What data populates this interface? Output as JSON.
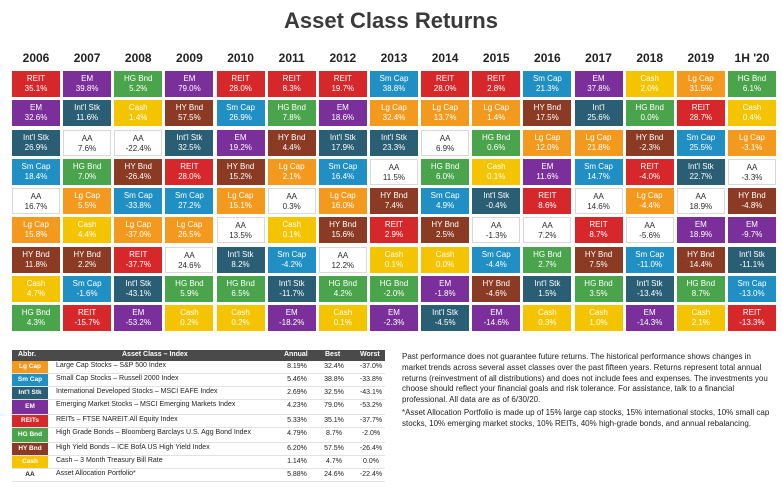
{
  "title": "Asset Class Returns",
  "colors": {
    "REIT": "#d6282a",
    "EM": "#7b2f9a",
    "HG Bnd": "#4aa44c",
    "Sm Cap": "#1f8fc4",
    "Int'l Stk": "#2a5e74",
    "AA": "#ffffff",
    "Lg Cap": "#f39a1e",
    "HY Bnd": "#8b3a24",
    "Cash": "#f5c400"
  },
  "chart_data": {
    "type": "table",
    "title": "Asset Class Returns",
    "years": [
      "2006",
      "2007",
      "2008",
      "2009",
      "2010",
      "2011",
      "2012",
      "2013",
      "2014",
      "2015",
      "2016",
      "2017",
      "2018",
      "2019",
      "1H '20"
    ],
    "columns": [
      [
        [
          "REIT",
          "35.1%"
        ],
        [
          "EM",
          "32.6%"
        ],
        [
          "Int'l Stk",
          "26.9%"
        ],
        [
          "Sm Cap",
          "18.4%"
        ],
        [
          "AA",
          "16.7%"
        ],
        [
          "Lg Cap",
          "15.8%"
        ],
        [
          "HY Bnd",
          "11.8%"
        ],
        [
          "Cash",
          "4.7%"
        ],
        [
          "HG Bnd",
          "4.3%"
        ]
      ],
      [
        [
          "EM",
          "39.8%"
        ],
        [
          "Int'l Stk",
          "11.6%"
        ],
        [
          "AA",
          "7.6%"
        ],
        [
          "HG Bnd",
          "7.0%"
        ],
        [
          "Lg Cap",
          "5.5%"
        ],
        [
          "Cash",
          "4.4%"
        ],
        [
          "HY Bnd",
          "2.2%"
        ],
        [
          "Sm Cap",
          "-1.6%"
        ],
        [
          "REIT",
          "-15.7%"
        ]
      ],
      [
        [
          "HG Bnd",
          "5.2%"
        ],
        [
          "Cash",
          "1.4%"
        ],
        [
          "AA",
          "-22.4%"
        ],
        [
          "HY Bnd",
          "-26.4%"
        ],
        [
          "Sm Cap",
          "-33.8%"
        ],
        [
          "Lg Cap",
          "-37.0%"
        ],
        [
          "REIT",
          "-37.7%"
        ],
        [
          "Int'l Stk",
          "-43.1%"
        ],
        [
          "EM",
          "-53.2%"
        ]
      ],
      [
        [
          "EM",
          "79.0%"
        ],
        [
          "HY Bnd",
          "57.5%"
        ],
        [
          "Int'l Stk",
          "32.5%"
        ],
        [
          "REIT",
          "28.0%"
        ],
        [
          "Sm Cap",
          "27.2%"
        ],
        [
          "Lg Cap",
          "26.5%"
        ],
        [
          "AA",
          "24.6%"
        ],
        [
          "HG Bnd",
          "5.9%"
        ],
        [
          "Cash",
          "0.2%"
        ]
      ],
      [
        [
          "REIT",
          "28.0%"
        ],
        [
          "Sm Cap",
          "26.9%"
        ],
        [
          "EM",
          "19.2%"
        ],
        [
          "HY Bnd",
          "15.2%"
        ],
        [
          "Lg Cap",
          "15.1%"
        ],
        [
          "AA",
          "13.5%"
        ],
        [
          "Int'l Stk",
          "8.2%"
        ],
        [
          "HG Bnd",
          "6.5%"
        ],
        [
          "Cash",
          "0.2%"
        ]
      ],
      [
        [
          "REIT",
          "8.3%"
        ],
        [
          "HG Bnd",
          "7.8%"
        ],
        [
          "HY Bnd",
          "4.4%"
        ],
        [
          "Lg Cap",
          "2.1%"
        ],
        [
          "AA",
          "0.3%"
        ],
        [
          "Cash",
          "0.1%"
        ],
        [
          "Sm Cap",
          "-4.2%"
        ],
        [
          "Int'l Stk",
          "-11.7%"
        ],
        [
          "EM",
          "-18.2%"
        ]
      ],
      [
        [
          "REIT",
          "19.7%"
        ],
        [
          "EM",
          "18.6%"
        ],
        [
          "Int'l Stk",
          "17.9%"
        ],
        [
          "Sm Cap",
          "16.4%"
        ],
        [
          "Lg Cap",
          "16.0%"
        ],
        [
          "HY Bnd",
          "15.6%"
        ],
        [
          "AA",
          "12.2%"
        ],
        [
          "HG Bnd",
          "4.2%"
        ],
        [
          "Cash",
          "0.1%"
        ]
      ],
      [
        [
          "Sm Cap",
          "38.8%"
        ],
        [
          "Lg Cap",
          "32.4%"
        ],
        [
          "Int'l Stk",
          "23.3%"
        ],
        [
          "AA",
          "11.5%"
        ],
        [
          "HY Bnd",
          "7.4%"
        ],
        [
          "REIT",
          "2.9%"
        ],
        [
          "Cash",
          "0.1%"
        ],
        [
          "HG Bnd",
          "-2.0%"
        ],
        [
          "EM",
          "-2.3%"
        ]
      ],
      [
        [
          "REIT",
          "28.0%"
        ],
        [
          "Lg Cap",
          "13.7%"
        ],
        [
          "AA",
          "6.9%"
        ],
        [
          "HG Bnd",
          "6.0%"
        ],
        [
          "Sm Cap",
          "4.9%"
        ],
        [
          "HY Bnd",
          "2.5%"
        ],
        [
          "Cash",
          "0.0%"
        ],
        [
          "EM",
          "-1.8%"
        ],
        [
          "Int'l Stk",
          "-4.5%"
        ]
      ],
      [
        [
          "REIT",
          "2.8%"
        ],
        [
          "Lg Cap",
          "1.4%"
        ],
        [
          "HG Bnd",
          "0.6%"
        ],
        [
          "Cash",
          "0.1%"
        ],
        [
          "Int'l Stk",
          "-0.4%"
        ],
        [
          "AA",
          "-1.3%"
        ],
        [
          "Sm Cap",
          "-4.4%"
        ],
        [
          "HY Bnd",
          "-4.6%"
        ],
        [
          "EM",
          "-14.6%"
        ]
      ],
      [
        [
          "Sm Cap",
          "21.3%"
        ],
        [
          "HY Bnd",
          "17.5%"
        ],
        [
          "Lg Cap",
          "12.0%"
        ],
        [
          "EM",
          "11.6%"
        ],
        [
          "REIT",
          "8.6%"
        ],
        [
          "AA",
          "7.2%"
        ],
        [
          "HG Bnd",
          "2.7%"
        ],
        [
          "Int'l Stk",
          "1.5%"
        ],
        [
          "Cash",
          "0.3%"
        ]
      ],
      [
        [
          "EM",
          "37.8%"
        ],
        [
          "Int'l",
          "25.6%"
        ],
        [
          "Lg Cap",
          "21.8%"
        ],
        [
          "Sm Cap",
          "14.7%"
        ],
        [
          "AA",
          "14.6%"
        ],
        [
          "REIT",
          "8.7%"
        ],
        [
          "HY Bnd",
          "7.5%"
        ],
        [
          "HG Bnd",
          "3.5%"
        ],
        [
          "Cash",
          "1.0%"
        ]
      ],
      [
        [
          "Cash",
          "2.0%"
        ],
        [
          "HG Bnd",
          "0.0%"
        ],
        [
          "HY Bnd",
          "-2.3%"
        ],
        [
          "REIT",
          "-4.0%"
        ],
        [
          "Lg Cap",
          "-4.4%"
        ],
        [
          "AA",
          "-5.6%"
        ],
        [
          "Sm Cap",
          "-11.0%"
        ],
        [
          "Int'l Stk",
          "-13.4%"
        ],
        [
          "EM",
          "-14.3%"
        ]
      ],
      [
        [
          "Lg Cap",
          "31.5%"
        ],
        [
          "REIT",
          "28.7%"
        ],
        [
          "Sm Cap",
          "25.5%"
        ],
        [
          "Int'l Stk",
          "22.7%"
        ],
        [
          "AA",
          "18.9%"
        ],
        [
          "EM",
          "18.9%"
        ],
        [
          "HY Bnd",
          "14.4%"
        ],
        [
          "HG Bnd",
          "8.7%"
        ],
        [
          "Cash",
          "2.1%"
        ]
      ],
      [
        [
          "HG Bnd",
          "6.1%"
        ],
        [
          "Cash",
          "0.4%"
        ],
        [
          "Lg Cap",
          "-3.1%"
        ],
        [
          "AA",
          "-3.3%"
        ],
        [
          "HY Bnd",
          "-4.8%"
        ],
        [
          "EM",
          "-9.7%"
        ],
        [
          "Int'l Stk",
          "-11.1%"
        ],
        [
          "Sm Cap",
          "-13.0%"
        ],
        [
          "REIT",
          "-13.3%"
        ]
      ]
    ]
  },
  "legend": {
    "headers": {
      "abbr": "Abbr.",
      "name": "Asset Class – Index",
      "annual": "Annual",
      "best": "Best",
      "worst": "Worst"
    },
    "rows": [
      {
        "abbr": "Lg Cap",
        "name": "Large Cap Stocks – S&P 500 Index",
        "annual": "8.19%",
        "best": "32.4%",
        "worst": "-37.0%"
      },
      {
        "abbr": "Sm Cap",
        "name": "Small Cap Stocks – Russell 2000 Index",
        "annual": "5.46%",
        "best": "38.8%",
        "worst": "-33.8%"
      },
      {
        "abbr": "Int'l Stk",
        "name": "International Developed Stocks – MSCI EAFE Index",
        "annual": "2.69%",
        "best": "32.5%",
        "worst": "-43.1%"
      },
      {
        "abbr": "EM",
        "name": "Emerging Market Stocks – MSCI Emerging Markets Index",
        "annual": "4.23%",
        "best": "79.0%",
        "worst": "-53.2%"
      },
      {
        "abbr": "REITs",
        "name": "REITs – FTSE NAREIT All Equity Index",
        "annual": "5.33%",
        "best": "35.1%",
        "worst": "-37.7%"
      },
      {
        "abbr": "HG Bnd",
        "name": "High Grade Bonds – Bloomberg Barclays U.S. Agg Bond Index",
        "annual": "4.79%",
        "best": "8.7%",
        "worst": "-2.0%"
      },
      {
        "abbr": "HY Bnd",
        "name": "High Yield Bonds – ICE BofA US High Yield Index",
        "annual": "6.20%",
        "best": "57.5%",
        "worst": "-26.4%"
      },
      {
        "abbr": "Cash",
        "name": "Cash – 3 Month Treasury Bill Rate",
        "annual": "1.14%",
        "best": "4.7%",
        "worst": "0.0%"
      },
      {
        "abbr": "AA",
        "name": "Asset Allocation Portfolio*",
        "annual": "5.88%",
        "best": "24.6%",
        "worst": "-22.4%"
      }
    ]
  },
  "notes": {
    "p1": "Past performance does not guarantee future returns. The historical performance shows changes in market trends across several asset classes over the past fifteen years. Returns represent total annual returns (reinvestment of all distributions) and does not include fees and expenses. The investments you choose should reflect your financial goals and risk tolerance. For assistance, talk to a financial professional. All data are as of 6/30/20.",
    "p2": "*Asset Allocation Portfolio is made up of 15% large cap stocks, 15% international stocks, 10% small cap stocks, 10% emerging market stocks, 10% REITs, 40% high-grade bonds, and annual rebalancing."
  }
}
